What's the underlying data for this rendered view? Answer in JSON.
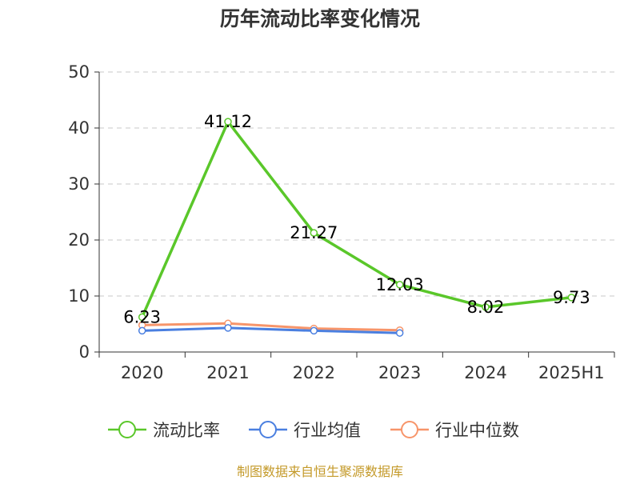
{
  "chart_data": {
    "type": "line",
    "title": "历年流动比率变化情况",
    "categories": [
      "2020",
      "2021",
      "2022",
      "2023",
      "2024",
      "2025H1"
    ],
    "ylim": [
      0,
      50
    ],
    "yticks": [
      0,
      10,
      20,
      30,
      40,
      50
    ],
    "grid": true,
    "legend_position": "bottom",
    "series": [
      {
        "name": "流动比率",
        "color": "#5ac72a",
        "values": [
          6.23,
          41.12,
          21.27,
          12.03,
          8.02,
          9.73
        ],
        "labels": [
          "6.23",
          "41.12",
          "21.27",
          "12.03",
          "8.02",
          "9.73"
        ]
      },
      {
        "name": "行业均值",
        "color": "#4a7fe0",
        "values": [
          3.8,
          4.3,
          3.8,
          3.4,
          null,
          null
        ]
      },
      {
        "name": "行业中位数",
        "color": "#f7956a",
        "values": [
          4.8,
          5.1,
          4.2,
          3.9,
          null,
          null
        ]
      }
    ]
  },
  "source_text": "制图数据来自恒生聚源数据库",
  "source_color": "#c49a2a"
}
